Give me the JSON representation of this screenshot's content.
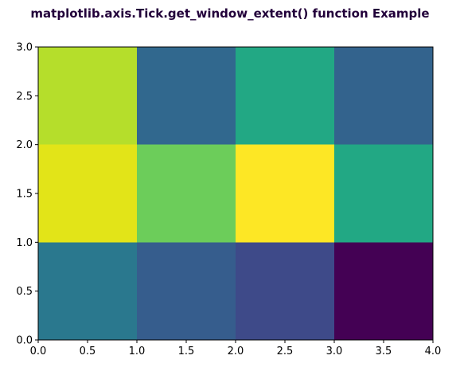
{
  "chart_data": {
    "type": "heatmap",
    "title": "matplotlib.axis.Tick.get_window_extent() function Example",
    "title_color": "#22003a",
    "xlabel": "",
    "ylabel": "",
    "x_edges": [
      0,
      1,
      2,
      3,
      4
    ],
    "y_edges": [
      0,
      1,
      2,
      3
    ],
    "xlim": [
      0,
      4
    ],
    "ylim": [
      0,
      3
    ],
    "x_ticks": [
      0.0,
      0.5,
      1.0,
      1.5,
      2.0,
      2.5,
      3.0,
      3.5,
      4.0
    ],
    "x_tick_labels": [
      "0.0",
      "0.5",
      "1.0",
      "1.5",
      "2.0",
      "2.5",
      "3.0",
      "3.5",
      "4.0"
    ],
    "y_ticks": [
      0.0,
      0.5,
      1.0,
      1.5,
      2.0,
      2.5,
      3.0
    ],
    "y_tick_labels": [
      "0.0",
      "0.5",
      "1.0",
      "1.5",
      "2.0",
      "2.5",
      "3.0"
    ],
    "colormap": "viridis",
    "grid": false,
    "cells": [
      {
        "x": 0,
        "y": 0,
        "color": "#2a788e"
      },
      {
        "x": 1,
        "y": 0,
        "color": "#365d8d"
      },
      {
        "x": 2,
        "y": 0,
        "color": "#3e4a89"
      },
      {
        "x": 3,
        "y": 0,
        "color": "#440154"
      },
      {
        "x": 0,
        "y": 1,
        "color": "#e2e418"
      },
      {
        "x": 1,
        "y": 1,
        "color": "#6ccd5a"
      },
      {
        "x": 2,
        "y": 1,
        "color": "#fde725"
      },
      {
        "x": 3,
        "y": 1,
        "color": "#22a884"
      },
      {
        "x": 0,
        "y": 2,
        "color": "#b5de2b"
      },
      {
        "x": 1,
        "y": 2,
        "color": "#31688e"
      },
      {
        "x": 2,
        "y": 2,
        "color": "#22a884"
      },
      {
        "x": 3,
        "y": 2,
        "color": "#33638d"
      }
    ]
  }
}
